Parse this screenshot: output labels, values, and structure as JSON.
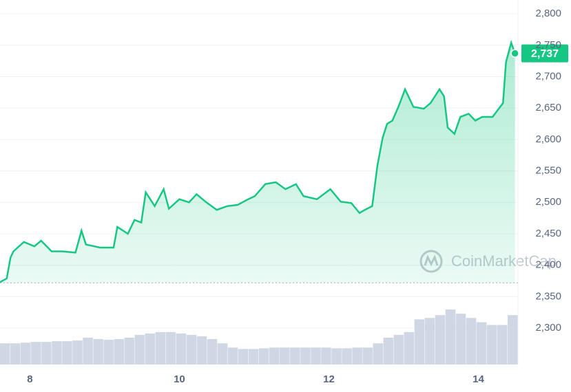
{
  "chart_data": {
    "type": "line",
    "watermark": "CoinMarketCap",
    "x": [
      7.6,
      7.69,
      7.74,
      7.78,
      7.92,
      8.06,
      8.15,
      8.29,
      8.43,
      8.61,
      8.69,
      8.75,
      8.94,
      9.12,
      9.17,
      9.31,
      9.4,
      9.49,
      9.55,
      9.67,
      9.79,
      9.86,
      10.0,
      10.13,
      10.23,
      10.36,
      10.5,
      10.64,
      10.78,
      10.92,
      11.01,
      11.15,
      11.29,
      11.42,
      11.56,
      11.66,
      11.84,
      12.02,
      12.16,
      12.3,
      12.41,
      12.48,
      12.58,
      12.65,
      12.72,
      12.78,
      12.85,
      12.93,
      13.02,
      13.13,
      13.27,
      13.36,
      13.48,
      13.54,
      13.59,
      13.68,
      13.76,
      13.87,
      13.96,
      14.05,
      14.19,
      14.33,
      14.37,
      14.44,
      14.49
    ],
    "series": [
      {
        "color": "#16c784",
        "below_color": "#ea3943",
        "values": [
          2373,
          2379,
          2412,
          2422,
          2437,
          2430,
          2439,
          2422,
          2422,
          2420,
          2455,
          2433,
          2428,
          2428,
          2461,
          2450,
          2472,
          2468,
          2516,
          2494,
          2521,
          2490,
          2505,
          2500,
          2513,
          2500,
          2488,
          2494,
          2496,
          2505,
          2510,
          2529,
          2532,
          2521,
          2529,
          2510,
          2505,
          2521,
          2501,
          2499,
          2483,
          2488,
          2494,
          2559,
          2603,
          2625,
          2630,
          2652,
          2680,
          2652,
          2649,
          2658,
          2680,
          2669,
          2619,
          2609,
          2636,
          2641,
          2630,
          2636,
          2636,
          2658,
          2723,
          2754,
          2737
        ],
        "last_label": "2,737"
      }
    ],
    "baseline": 2372,
    "volume": {
      "color": "#cfd6e4",
      "values": [
        30,
        30,
        31,
        32,
        32,
        33,
        33,
        34,
        38,
        36,
        35,
        36,
        38,
        42,
        44,
        46,
        46,
        44,
        42,
        40,
        36,
        30,
        24,
        22,
        22,
        23,
        24,
        24,
        24,
        24,
        24,
        24,
        23,
        23,
        24,
        24,
        30,
        38,
        42,
        46,
        64,
        66,
        70,
        78,
        72,
        66,
        60,
        56,
        56,
        70
      ]
    },
    "xlim": [
      7.6,
      14.53
    ],
    "xticks": [
      8,
      10,
      12,
      14
    ],
    "ylim": [
      2242,
      2822
    ],
    "yticks": [
      {
        "value": 2300,
        "label": "2,300"
      },
      {
        "value": 2350,
        "label": "2,350"
      },
      {
        "value": 2400,
        "label": "2,400"
      },
      {
        "value": 2450,
        "label": "2,450"
      },
      {
        "value": 2500,
        "label": "2,500"
      },
      {
        "value": 2550,
        "label": "2,550"
      },
      {
        "value": 2600,
        "label": "2,600"
      },
      {
        "value": 2650,
        "label": "2,650"
      },
      {
        "value": 2700,
        "label": "2,700"
      },
      {
        "value": 2750,
        "label": "2,750"
      },
      {
        "value": 2800,
        "label": "2,800"
      }
    ],
    "grid": true
  }
}
